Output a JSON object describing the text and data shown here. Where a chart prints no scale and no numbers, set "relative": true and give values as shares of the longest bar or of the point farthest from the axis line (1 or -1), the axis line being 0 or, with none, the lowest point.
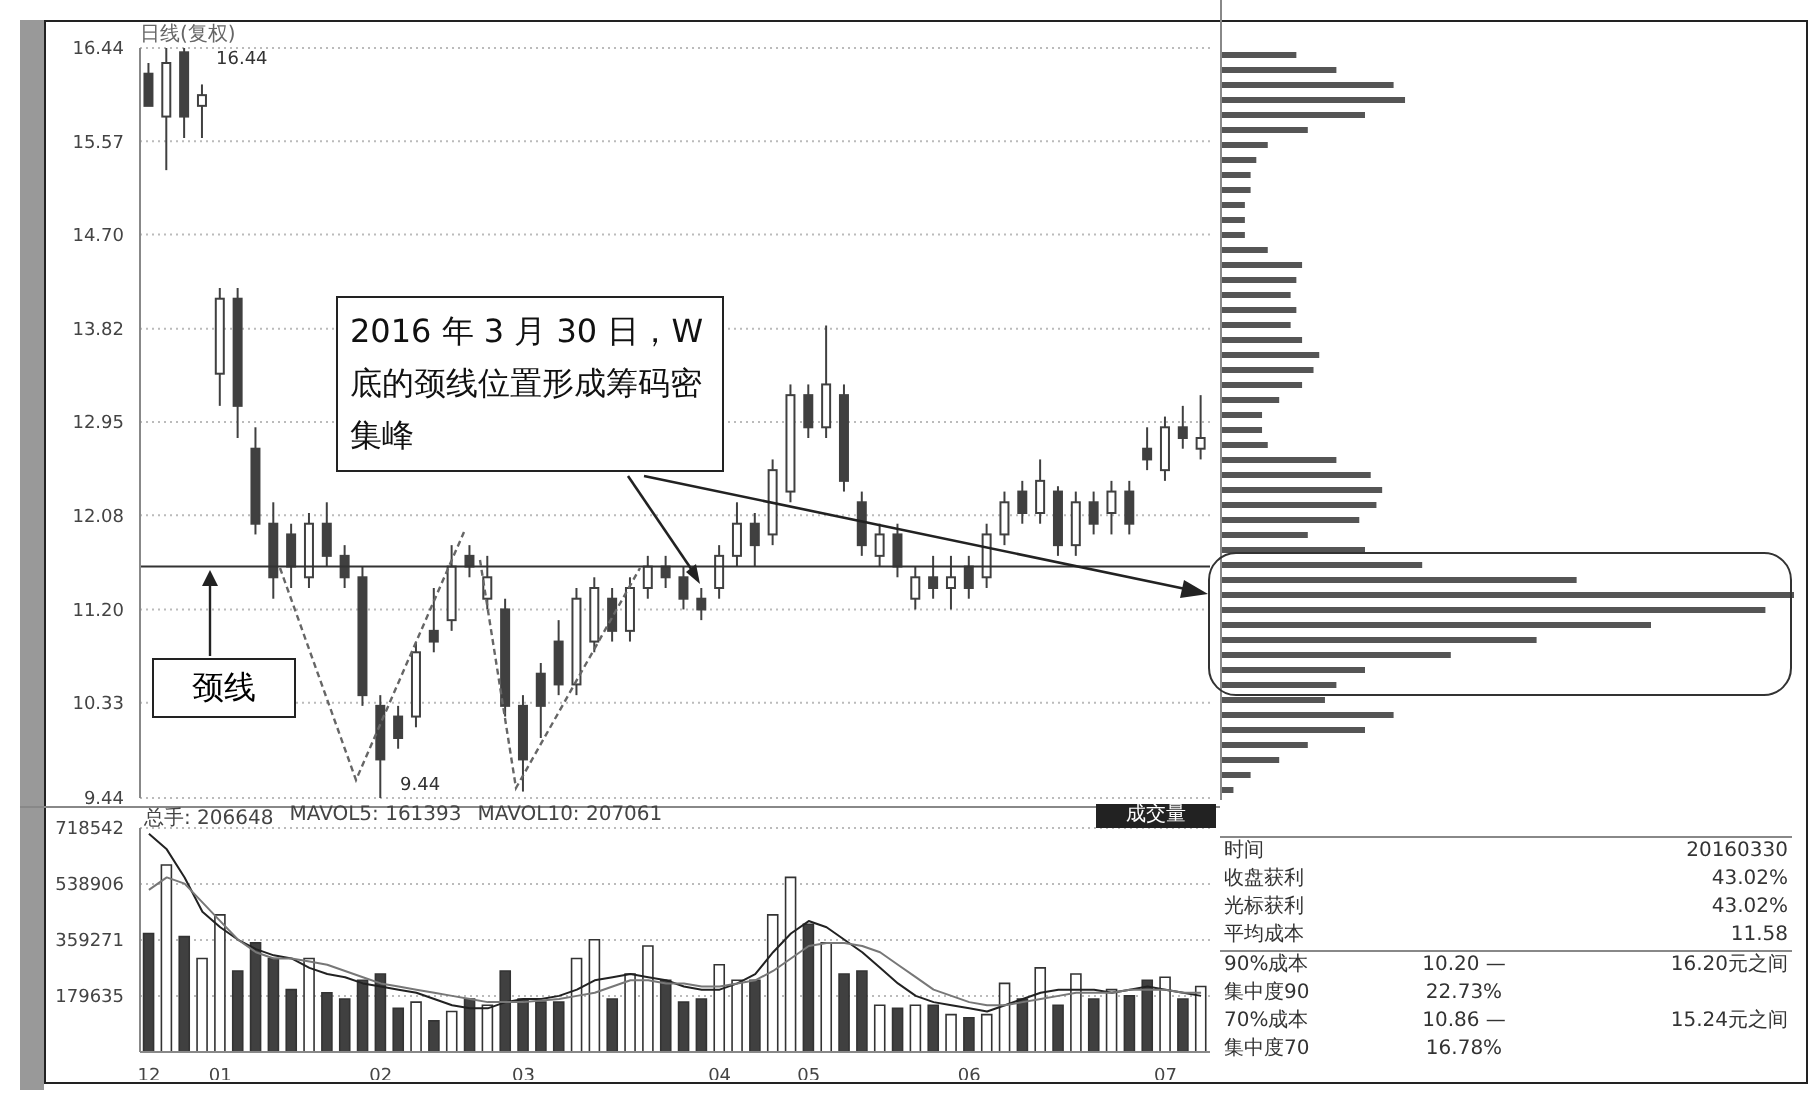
{
  "chart_data": [
    {
      "type": "candlestick",
      "categories": [
        null,
        null,
        null,
        null,
        null,
        null,
        null,
        null,
        null,
        null,
        null,
        null,
        null,
        null,
        null,
        null,
        null,
        null,
        null,
        null,
        null,
        null,
        null,
        null,
        null,
        null,
        null,
        null,
        null,
        null,
        null,
        null,
        null,
        null,
        null,
        null,
        null,
        null,
        null,
        null,
        null,
        null,
        null,
        null,
        null,
        null,
        null,
        null,
        null,
        null,
        null,
        null,
        null,
        null,
        null,
        null,
        null,
        null,
        null,
        null
      ],
      "ohlc": [
        [
          16.2,
          16.3,
          15.9,
          15.9
        ],
        [
          15.8,
          16.44,
          15.3,
          16.3
        ],
        [
          16.4,
          16.44,
          15.6,
          15.8
        ],
        [
          15.9,
          16.1,
          15.6,
          16.0
        ],
        [
          13.4,
          14.2,
          13.1,
          14.1
        ],
        [
          14.1,
          14.2,
          12.8,
          13.1
        ],
        [
          12.7,
          12.9,
          11.9,
          12.0
        ],
        [
          12.0,
          12.2,
          11.3,
          11.5
        ],
        [
          11.9,
          12.0,
          11.4,
          11.6
        ],
        [
          11.5,
          12.1,
          11.4,
          12.0
        ],
        [
          12.0,
          12.2,
          11.6,
          11.7
        ],
        [
          11.7,
          11.8,
          11.4,
          11.5
        ],
        [
          11.5,
          11.6,
          10.3,
          10.4
        ],
        [
          10.3,
          10.4,
          9.44,
          9.8
        ],
        [
          10.2,
          10.3,
          9.9,
          10.0
        ],
        [
          10.2,
          10.9,
          10.1,
          10.8
        ],
        [
          11.0,
          11.4,
          10.8,
          10.9
        ],
        [
          11.1,
          11.8,
          11.0,
          11.6
        ],
        [
          11.7,
          11.8,
          11.5,
          11.6
        ],
        [
          11.3,
          11.7,
          11.2,
          11.5
        ],
        [
          11.2,
          11.3,
          10.2,
          10.3
        ],
        [
          10.3,
          10.4,
          9.5,
          9.8
        ],
        [
          10.6,
          10.7,
          10.0,
          10.3
        ],
        [
          10.9,
          11.1,
          10.4,
          10.5
        ],
        [
          10.5,
          11.4,
          10.4,
          11.3
        ],
        [
          10.9,
          11.5,
          10.8,
          11.4
        ],
        [
          11.3,
          11.4,
          10.9,
          11.0
        ],
        [
          11.0,
          11.5,
          10.9,
          11.4
        ],
        [
          11.4,
          11.7,
          11.3,
          11.6
        ],
        [
          11.6,
          11.7,
          11.4,
          11.5
        ],
        [
          11.5,
          11.6,
          11.2,
          11.3
        ],
        [
          11.3,
          11.4,
          11.1,
          11.2
        ],
        [
          11.4,
          11.8,
          11.3,
          11.7
        ],
        [
          11.7,
          12.2,
          11.6,
          12.0
        ],
        [
          12.0,
          12.1,
          11.6,
          11.8
        ],
        [
          11.9,
          12.6,
          11.8,
          12.5
        ],
        [
          12.3,
          13.3,
          12.2,
          13.2
        ],
        [
          13.2,
          13.3,
          12.8,
          12.9
        ],
        [
          12.9,
          13.85,
          12.8,
          13.3
        ],
        [
          13.2,
          13.3,
          12.3,
          12.4
        ],
        [
          12.2,
          12.3,
          11.7,
          11.8
        ],
        [
          11.7,
          12.0,
          11.6,
          11.9
        ],
        [
          11.9,
          12.0,
          11.5,
          11.6
        ],
        [
          11.3,
          11.6,
          11.2,
          11.5
        ],
        [
          11.5,
          11.7,
          11.3,
          11.4
        ],
        [
          11.4,
          11.7,
          11.2,
          11.5
        ],
        [
          11.6,
          11.7,
          11.3,
          11.4
        ],
        [
          11.5,
          12.0,
          11.4,
          11.9
        ],
        [
          11.9,
          12.3,
          11.8,
          12.2
        ],
        [
          12.3,
          12.4,
          12.0,
          12.1
        ],
        [
          12.1,
          12.6,
          12.0,
          12.4
        ],
        [
          12.3,
          12.35,
          11.7,
          11.8
        ],
        [
          11.8,
          12.3,
          11.7,
          12.2
        ],
        [
          12.2,
          12.3,
          11.9,
          12.0
        ],
        [
          12.1,
          12.4,
          11.9,
          12.3
        ],
        [
          12.3,
          12.4,
          11.9,
          12.0
        ],
        [
          12.7,
          12.9,
          12.5,
          12.6
        ],
        [
          12.5,
          13.0,
          12.4,
          12.9
        ],
        [
          12.9,
          13.1,
          12.7,
          12.8
        ],
        [
          12.7,
          13.2,
          12.6,
          12.8
        ]
      ],
      "color": "#404040",
      "ylim": [
        9.44,
        16.44
      ],
      "yticks": [
        9.44,
        {
          "value": 10.33,
          "label": "10.33"
        },
        {
          "value": 11.2,
          "label": "11.20"
        },
        12.08,
        12.95,
        13.82,
        {
          "value": 14.7,
          "label": "14.70"
        },
        15.57,
        16.44
      ],
      "grid": "y",
      "tick_labels": "y",
      "ref_lines": [
        {
          "axis": "y",
          "value": 11.6,
          "label": "颈线",
          "color": "#333333"
        }
      ],
      "annotations": [
        "日线(复权)",
        "2016 年 3 月 30 日，W 底的颈线位置形成筹码密集峰",
        "16.44",
        "9.44"
      ]
    },
    {
      "type": "bar",
      "categories": [
        "12",
        null,
        null,
        null,
        "01",
        null,
        null,
        null,
        null,
        null,
        null,
        null,
        null,
        "02",
        null,
        null,
        null,
        null,
        null,
        null,
        null,
        "03",
        null,
        null,
        null,
        null,
        null,
        null,
        null,
        null,
        null,
        null,
        "04",
        null,
        null,
        null,
        null,
        "05",
        null,
        null,
        null,
        null,
        null,
        null,
        null,
        null,
        "06",
        null,
        null,
        null,
        null,
        null,
        null,
        null,
        null,
        null,
        null,
        "07",
        null,
        null
      ],
      "series": [
        {
          "type": "bar",
          "values": [
            380000,
            600000,
            370000,
            300000,
            440000,
            260000,
            350000,
            300000,
            200000,
            300000,
            190000,
            170000,
            230000,
            250000,
            140000,
            160000,
            100000,
            130000,
            170000,
            150000,
            260000,
            170000,
            160000,
            160000,
            300000,
            360000,
            170000,
            250000,
            340000,
            230000,
            160000,
            170000,
            280000,
            230000,
            230000,
            440000,
            560000,
            410000,
            350000,
            250000,
            260000,
            150000,
            140000,
            150000,
            150000,
            120000,
            110000,
            120000,
            220000,
            170000,
            270000,
            150000,
            250000,
            170000,
            200000,
            180000,
            230000,
            240000,
            170000,
            210000
          ],
          "colors": [
            "#404040",
            "#ffffff",
            "#404040",
            "#ffffff",
            "#ffffff",
            "#404040",
            "#404040",
            "#404040",
            "#404040",
            "#ffffff",
            "#404040",
            "#404040",
            "#404040",
            "#404040",
            "#404040",
            "#ffffff",
            "#404040",
            "#ffffff",
            "#404040",
            "#ffffff",
            "#404040",
            "#404040",
            "#404040",
            "#404040",
            "#ffffff",
            "#ffffff",
            "#404040",
            "#ffffff",
            "#ffffff",
            "#404040",
            "#404040",
            "#404040",
            "#ffffff",
            "#ffffff",
            "#404040",
            "#ffffff",
            "#ffffff",
            "#404040",
            "#ffffff",
            "#404040",
            "#404040",
            "#ffffff",
            "#404040",
            "#ffffff",
            "#404040",
            "#ffffff",
            "#404040",
            "#ffffff",
            "#ffffff",
            "#404040",
            "#ffffff",
            "#404040",
            "#ffffff",
            "#404040",
            "#ffffff",
            "#404040",
            "#404040",
            "#ffffff",
            "#404040",
            "#ffffff"
          ]
        },
        {
          "type": "line",
          "color": "#222222",
          "values": [
            700000,
            650000,
            560000,
            450000,
            400000,
            360000,
            330000,
            310000,
            300000,
            270000,
            250000,
            240000,
            220000,
            210000,
            200000,
            190000,
            170000,
            150000,
            140000,
            140000,
            160000,
            170000,
            170000,
            180000,
            200000,
            230000,
            240000,
            250000,
            240000,
            230000,
            210000,
            200000,
            200000,
            220000,
            250000,
            320000,
            380000,
            420000,
            400000,
            360000,
            320000,
            270000,
            220000,
            180000,
            160000,
            150000,
            140000,
            130000,
            150000,
            170000,
            190000,
            200000,
            200000,
            200000,
            190000,
            200000,
            210000,
            200000,
            190000,
            180000
          ]
        },
        {
          "type": "line",
          "color": "#777777",
          "values": [
            520000,
            560000,
            540000,
            480000,
            420000,
            360000,
            320000,
            300000,
            300000,
            290000,
            280000,
            260000,
            240000,
            220000,
            210000,
            200000,
            190000,
            180000,
            170000,
            160000,
            160000,
            160000,
            165000,
            170000,
            180000,
            190000,
            210000,
            230000,
            230000,
            220000,
            220000,
            210000,
            210000,
            220000,
            230000,
            260000,
            300000,
            340000,
            350000,
            350000,
            340000,
            320000,
            280000,
            240000,
            200000,
            180000,
            160000,
            150000,
            150000,
            160000,
            170000,
            180000,
            190000,
            190000,
            190000,
            200000,
            200000,
            200000,
            190000,
            190000
          ]
        }
      ],
      "ylim": [
        0,
        718542
      ],
      "yticks": [
        179635,
        359271,
        538906,
        718542
      ],
      "grid": "y",
      "annotations": [
        "总手: 206648",
        "MAVOL5: 161393",
        "MAVOL10: 207061",
        "成交量"
      ]
    },
    {
      "type": "bar",
      "orientation": "horizontal",
      "relative": true,
      "tick_labels": false,
      "color": "#555555",
      "categories": [
        null,
        null,
        null,
        null,
        null,
        null,
        null,
        null,
        null,
        null,
        null,
        null,
        null,
        null,
        null,
        null,
        null,
        null,
        null,
        null,
        null,
        null,
        null,
        null,
        null,
        null,
        null,
        null,
        null,
        null,
        null,
        null,
        null,
        null,
        null,
        null,
        null,
        null,
        null,
        null,
        null,
        null,
        null,
        null,
        null,
        null,
        null,
        null,
        null,
        null
      ],
      "values": [
        0.13,
        0.2,
        0.3,
        0.32,
        0.25,
        0.15,
        0.08,
        0.06,
        0.05,
        0.05,
        0.04,
        0.04,
        0.04,
        0.08,
        0.14,
        0.13,
        0.12,
        0.13,
        0.12,
        0.14,
        0.17,
        0.16,
        0.14,
        0.1,
        0.07,
        0.07,
        0.08,
        0.2,
        0.26,
        0.28,
        0.27,
        0.24,
        0.15,
        0.25,
        0.35,
        0.62,
        1,
        0.95,
        0.75,
        0.55,
        0.4,
        0.25,
        0.2,
        0.18,
        0.3,
        0.25,
        0.15,
        0.1,
        0.05,
        0.02
      ]
    },
    {
      "type": "other",
      "annotations": [
        "时间",
        "20160330",
        "收盘获利",
        "43.02%",
        "光标获利",
        "43.02%",
        "平均成本",
        "11.58",
        "90%成本",
        "10.20 —",
        "16.20元之间",
        "集中度90",
        "22.73%",
        "70%成本",
        "10.86 —",
        "15.24元之间",
        "集中度70",
        "16.78%"
      ]
    }
  ]
}
